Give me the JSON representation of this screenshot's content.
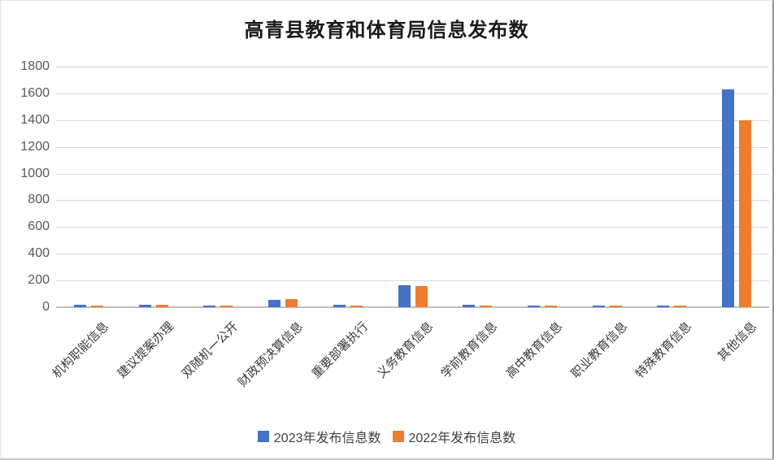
{
  "chart_data": {
    "type": "bar",
    "title": "高青县教育和体育局信息发布数",
    "categories": [
      "机构职能信息",
      "建议提案办理",
      "双随机一公开",
      "财政预决算信息",
      "重要部署执行",
      "义务教育信息",
      "学前教育信息",
      "高中教育信息",
      "职业教育信息",
      "特殊教育信息",
      "其他信息"
    ],
    "series": [
      {
        "name": "2023年发布信息数",
        "color": "#4472C4",
        "values": [
          18,
          18,
          10,
          55,
          18,
          165,
          20,
          12,
          12,
          12,
          1630
        ]
      },
      {
        "name": "2022年发布信息数",
        "color": "#ED7D31",
        "values": [
          8,
          16,
          8,
          60,
          14,
          160,
          10,
          10,
          10,
          10,
          1400
        ]
      }
    ],
    "xlabel": "",
    "ylabel": "",
    "ylim": [
      0,
      1800
    ],
    "ytick_step": 200,
    "ytick_labels": [
      "0",
      "200",
      "400",
      "600",
      "800",
      "1000",
      "1200",
      "1400",
      "1600",
      "1800"
    ],
    "grid": "horizontal",
    "legend_position": "bottom"
  },
  "colors": {
    "gridline": "#D9D9D9",
    "axis_line": "#BFBFBF",
    "axis_text": "#595959",
    "title_text": "#1A1A1A"
  }
}
